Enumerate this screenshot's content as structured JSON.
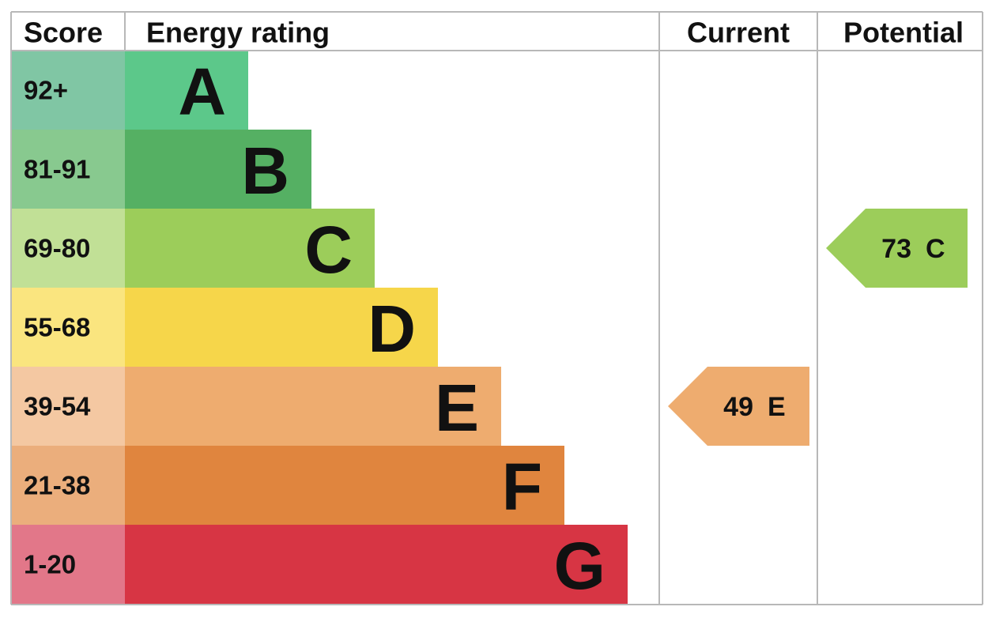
{
  "header": {
    "score": "Score",
    "rating": "Energy rating",
    "current": "Current",
    "potential": "Potential"
  },
  "bands": [
    {
      "letter": "A",
      "range": "92+",
      "color": "#5cc88a",
      "score_color": "#80c6a4"
    },
    {
      "letter": "B",
      "range": "81-91",
      "color": "#55b063",
      "score_color": "#88c98f"
    },
    {
      "letter": "C",
      "range": "69-80",
      "color": "#9ccd5a",
      "score_color": "#c1e096"
    },
    {
      "letter": "D",
      "range": "55-68",
      "color": "#f6d64a",
      "score_color": "#fae57f"
    },
    {
      "letter": "E",
      "range": "39-54",
      "color": "#eeac6f",
      "score_color": "#f4c8a2"
    },
    {
      "letter": "F",
      "range": "21-38",
      "color": "#e0853e",
      "score_color": "#ebae7c"
    },
    {
      "letter": "G",
      "range": "1-20",
      "color": "#d73544",
      "score_color": "#e27789"
    }
  ],
  "current": {
    "score": 49,
    "rating": "E"
  },
  "potential": {
    "score": 73,
    "rating": "C"
  }
}
